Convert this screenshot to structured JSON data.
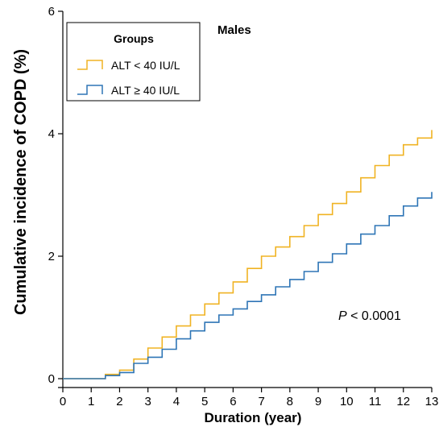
{
  "chart_data": {
    "type": "line",
    "title": "",
    "panel_label": "Males",
    "xlabel": "Duration (year)",
    "ylabel": "Cumulative incidence of COPD (%)",
    "xlim": [
      0,
      13
    ],
    "ylim": [
      0,
      6
    ],
    "x_ticks": [
      0,
      1,
      2,
      3,
      4,
      5,
      6,
      7,
      8,
      9,
      10,
      11,
      12,
      13
    ],
    "y_ticks": [
      0,
      2,
      4,
      6
    ],
    "grid": false,
    "legend": {
      "title": "Groups",
      "placement": "top-left"
    },
    "annotation": {
      "italic": "P",
      "text": " < 0.0001"
    },
    "series": [
      {
        "name": "ALT < 40 IU/L",
        "color": "#F0B323",
        "x": [
          0,
          1,
          1.5,
          2,
          2.5,
          3,
          3.5,
          4,
          4.5,
          5,
          5.5,
          6,
          6.5,
          7,
          7.5,
          8,
          8.5,
          9,
          9.5,
          10,
          10.5,
          11,
          11.5,
          12,
          12.5,
          13
        ],
        "y": [
          0,
          0,
          0.07,
          0.14,
          0.32,
          0.5,
          0.68,
          0.86,
          1.04,
          1.22,
          1.4,
          1.58,
          1.8,
          2.0,
          2.15,
          2.32,
          2.5,
          2.68,
          2.86,
          3.05,
          3.28,
          3.48,
          3.65,
          3.82,
          3.93,
          4.06
        ]
      },
      {
        "name": "ALT ≥ 40 IU/L",
        "color": "#2E75B6",
        "x": [
          0,
          1,
          1.5,
          2,
          2.5,
          3,
          3.5,
          4,
          4.5,
          5,
          5.5,
          6,
          6.5,
          7,
          7.5,
          8,
          8.5,
          9,
          9.5,
          10,
          10.5,
          11,
          11.5,
          12,
          12.5,
          13
        ],
        "y": [
          0,
          0,
          0.05,
          0.1,
          0.25,
          0.35,
          0.48,
          0.65,
          0.78,
          0.92,
          1.04,
          1.14,
          1.26,
          1.37,
          1.5,
          1.62,
          1.75,
          1.9,
          2.04,
          2.2,
          2.36,
          2.5,
          2.66,
          2.82,
          2.95,
          3.05
        ]
      }
    ]
  }
}
